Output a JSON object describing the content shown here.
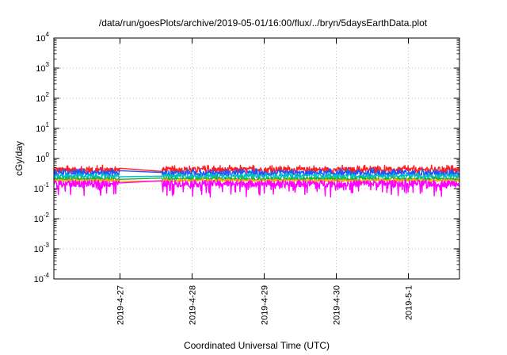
{
  "chart_data": {
    "type": "line",
    "title": "/data/run/goesPlots/archive/2019-05-01/16:00/flux/../bryn/5daysEarthData.plot",
    "xlabel": "Coordinated Universal Time (UTC)",
    "ylabel": "cGy/day",
    "y_scale": "log",
    "ylim": [
      0.0001,
      10000
    ],
    "y_ticks": [
      {
        "base": "10",
        "exp": "-4"
      },
      {
        "base": "10",
        "exp": "-3"
      },
      {
        "base": "10",
        "exp": "-2"
      },
      {
        "base": "10",
        "exp": "-1"
      },
      {
        "base": "10",
        "exp": "0"
      },
      {
        "base": "10",
        "exp": "1"
      },
      {
        "base": "10",
        "exp": "2"
      },
      {
        "base": "10",
        "exp": "3"
      },
      {
        "base": "10",
        "exp": "4"
      }
    ],
    "xlim": [
      "2019-04-26 02:00",
      "2019-05-01 17:00"
    ],
    "x_ticks": [
      "2019-4-27",
      "2019-4-28",
      "2019-4-29",
      "2019-4-30",
      "2019-5-1"
    ],
    "grid": true,
    "data_gap": [
      "2019-04-27 00:00",
      "2019-04-27 14:00"
    ],
    "series": [
      {
        "color": "#ff1f1f",
        "baseline": 0.42,
        "noise": 0.22
      },
      {
        "color": "#2255ff",
        "baseline": 0.33,
        "noise": 0.2
      },
      {
        "color": "#00c0c0",
        "baseline": 0.26,
        "noise": 0.14
      },
      {
        "color": "#20b040",
        "baseline": 0.21,
        "noise": 0.1
      },
      {
        "color": "#ffaa00",
        "baseline": 0.185,
        "noise": 0.08
      },
      {
        "color": "#ff00ff",
        "baseline": 0.15,
        "noise": 0.3
      }
    ]
  }
}
